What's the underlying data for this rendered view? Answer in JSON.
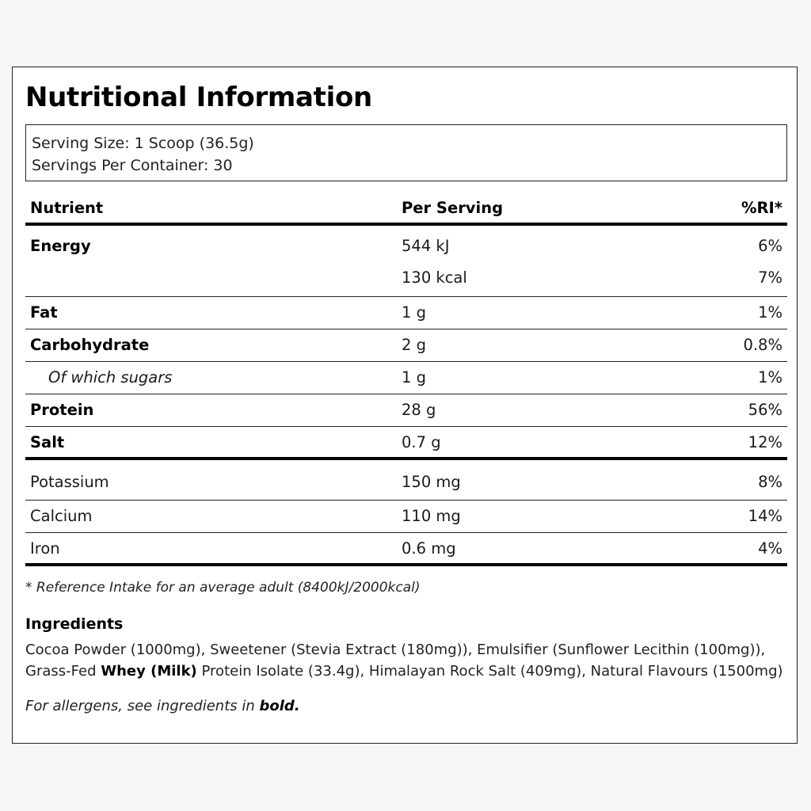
{
  "title": "Nutritional Information",
  "serving": {
    "size": "Serving Size: 1 Scoop (36.5g)",
    "per_container": "Servings Per Container: 30"
  },
  "table": {
    "headers": {
      "nutrient": "Nutrient",
      "per_serving": "Per Serving",
      "ri": "%RI*"
    },
    "energy": {
      "name": "Energy",
      "kj": "544 kJ",
      "kj_ri": "6%",
      "kcal": "130 kcal",
      "kcal_ri": "7%"
    },
    "rows": [
      {
        "name": "Fat",
        "value": "1 g",
        "ri": "1%"
      },
      {
        "name": "Carbohydrate",
        "value": "2 g",
        "ri": "0.8%"
      },
      {
        "name": "Of which sugars",
        "value": "1 g",
        "ri": "1%"
      },
      {
        "name": "Protein",
        "value": "28 g",
        "ri": "56%"
      },
      {
        "name": "Salt",
        "value": "0.7 g",
        "ri": "12%"
      }
    ],
    "minerals": [
      {
        "name": "Potassium",
        "value": "150 mg",
        "ri": "8%"
      },
      {
        "name": "Calcium",
        "value": "110 mg",
        "ri": "14%"
      },
      {
        "name": "Iron",
        "value": "0.6 mg",
        "ri": "4%"
      }
    ]
  },
  "footnote": "* Reference Intake for an average adult (8400kJ/2000kcal)",
  "ingredients": {
    "title": "Ingredients",
    "text_before": "Cocoa Powder (1000mg), Sweetener (Stevia Extract (180mg)), Emulsifier (Sunflower Lecithin (100mg)), Grass-Fed ",
    "allergen": "Whey (Milk)",
    "text_after": " Protein Isolate (33.4g), Himalayan Rock Salt (409mg), Natural Flavours (1500mg)"
  },
  "allergen_note": {
    "text": "For allergens, see ingredients in ",
    "bold": "bold."
  }
}
